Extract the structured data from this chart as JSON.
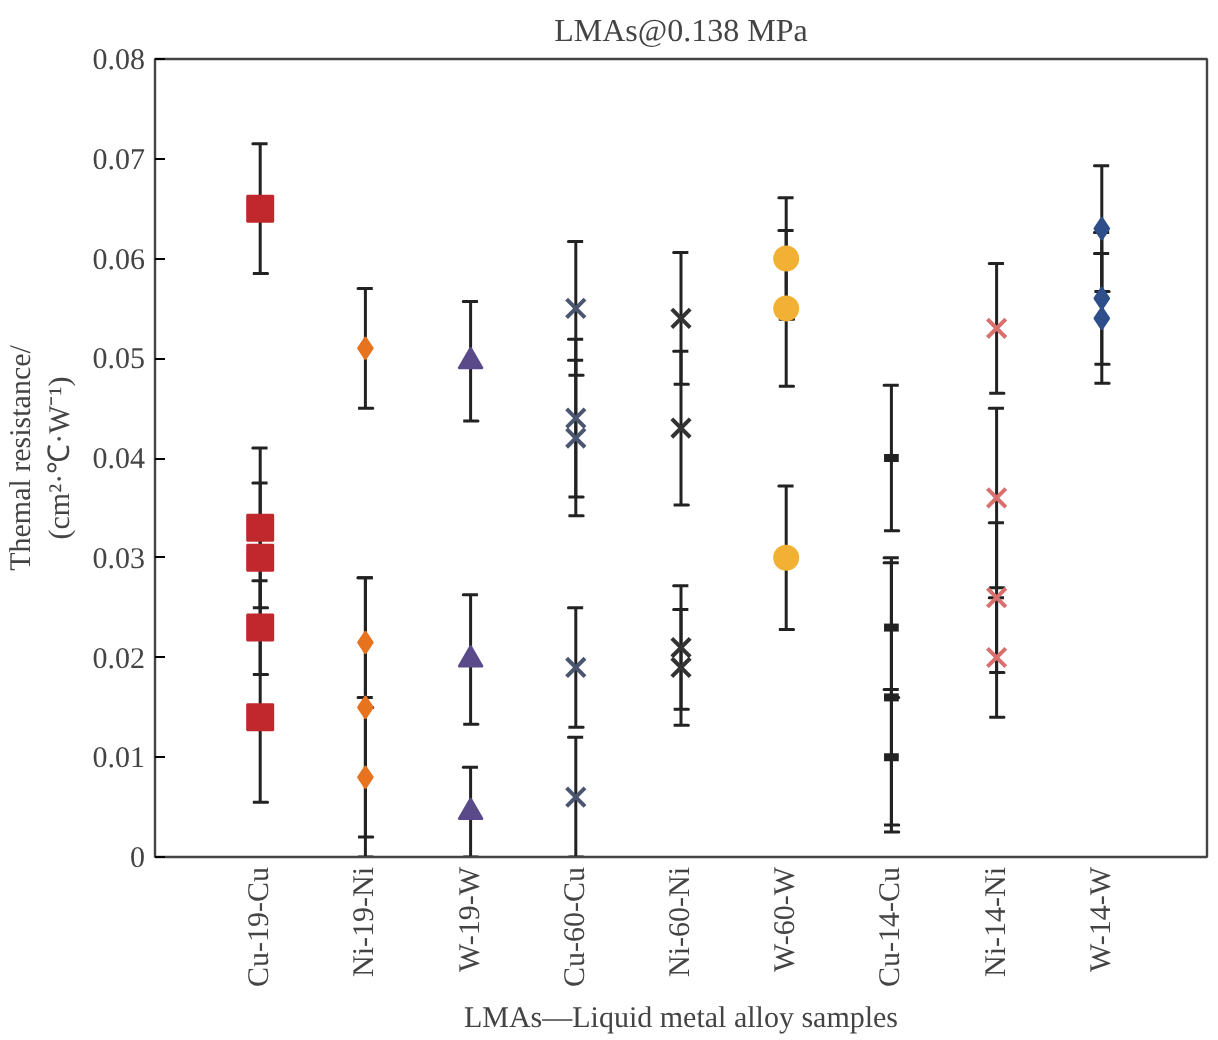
{
  "chart_data": {
    "type": "scatter",
    "title": "LMAs@0.138 MPa",
    "xlabel": "LMAs—Liquid metal alloy samples",
    "ylabel": "Themal resistance/\n(cm²·℃·W⁻¹)",
    "categories": [
      "Cu-19-Cu",
      "Ni-19-Ni",
      "W-19-W",
      "Cu-60-Cu",
      "Ni-60-Ni",
      "W-60-W",
      "Cu-14-Cu",
      "Ni-14-Ni",
      "W-14-W"
    ],
    "ylim": [
      0,
      0.08
    ],
    "yticks": [
      0,
      0.01,
      0.02,
      0.03,
      0.04,
      0.05,
      0.06,
      0.07,
      0.08
    ],
    "grid": false,
    "series": [
      {
        "color": "#c0282d",
        "marker": "square",
        "x": [
          "Cu-19-Cu",
          "Cu-19-Cu",
          "Cu-19-Cu",
          "Cu-19-Cu",
          "Cu-19-Cu"
        ],
        "values": [
          0.065,
          0.033,
          0.03,
          0.023,
          0.014
        ],
        "errors": [
          0.0065,
          0.008,
          0.0075,
          0.0047,
          0.0085
        ]
      },
      {
        "color": "#e8731f",
        "marker": "diamond",
        "x": [
          "Ni-19-Ni",
          "Ni-19-Ni",
          "Ni-19-Ni",
          "Ni-19-Ni"
        ],
        "values": [
          0.051,
          0.0215,
          0.015,
          0.008
        ],
        "errors": [
          0.006,
          0.0065,
          0.013,
          0.008
        ]
      },
      {
        "color": "#5b4a8a",
        "marker": "triangle",
        "x": [
          "W-19-W",
          "W-19-W",
          "W-19-W"
        ],
        "values": [
          0.0497,
          0.0198,
          0.0045
        ],
        "errors": [
          0.006,
          0.0065,
          0.0045
        ]
      },
      {
        "color": "#4a5570",
        "marker": "cross",
        "x": [
          "Cu-60-Cu",
          "Cu-60-Cu",
          "Cu-60-Cu",
          "Cu-60-Cu",
          "Cu-60-Cu"
        ],
        "values": [
          0.055,
          0.044,
          0.042,
          0.019,
          0.006
        ],
        "errors": [
          0.0067,
          0.0079,
          0.0078,
          0.006,
          0.006
        ]
      },
      {
        "color": "#333333",
        "marker": "cross",
        "x": [
          "Ni-60-Ni",
          "Ni-60-Ni",
          "Ni-60-Ni",
          "Ni-60-Ni"
        ],
        "values": [
          0.054,
          0.043,
          0.021,
          0.019
        ],
        "errors": [
          0.0066,
          0.0077,
          0.0062,
          0.0058
        ]
      },
      {
        "color": "#f2b134",
        "marker": "circle",
        "x": [
          "W-60-W",
          "W-60-W",
          "W-60-W"
        ],
        "values": [
          0.06,
          0.055,
          0.03
        ],
        "errors": [
          0.0061,
          0.0078,
          0.0072
        ]
      },
      {
        "color": "#222222",
        "x": [
          "Cu-14-Cu",
          "Cu-14-Cu",
          "Cu-14-Cu",
          "Cu-14-Cu"
        ],
        "values": [
          0.04,
          0.023,
          0.016,
          0.01
        ],
        "errors": [
          0.0073,
          0.007,
          0.0135,
          0.0068
        ]
      },
      {
        "color": "#d9706e",
        "marker": "cross",
        "x": [
          "Ni-14-Ni",
          "Ni-14-Ni",
          "Ni-14-Ni",
          "Ni-14-Ni"
        ],
        "values": [
          0.053,
          0.036,
          0.026,
          0.02
        ],
        "errors": [
          0.0065,
          0.009,
          0.0075,
          0.006
        ]
      },
      {
        "color": "#2e4f8a",
        "marker": "diamond",
        "x": [
          "W-14-W",
          "W-14-W",
          "W-14-W"
        ],
        "values": [
          0.063,
          0.056,
          0.054
        ],
        "errors": [
          0.0063,
          0.0066,
          0.0065
        ]
      }
    ]
  }
}
